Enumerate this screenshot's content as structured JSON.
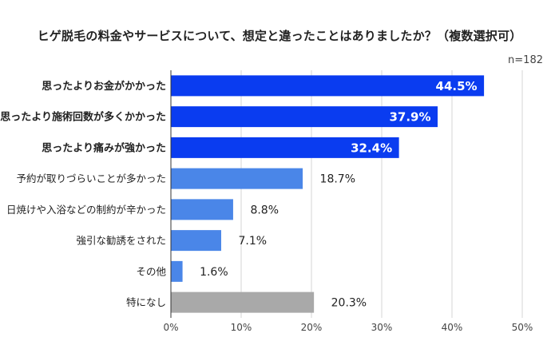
{
  "title": "ヒゲ脱毛の料金やサービスについて、想定と違ったことはありましたか？（複数選択可）",
  "sample_note": "n=182",
  "colors": {
    "highlight": "#0a3cf0",
    "normal": "#4a86e8",
    "none": "#a9a9a9",
    "grid": "#d6d6d6",
    "axis": "#333333"
  },
  "chart_data": {
    "type": "bar",
    "orientation": "horizontal",
    "title": "ヒゲ脱毛の料金やサービスについて、想定と違ったことはありましたか？（複数選択可）",
    "categories": [
      "思ったよりお金がかかった",
      "思ったより施術回数が多くかかった",
      "思ったより痛みが強かった",
      "予約が取りづらいことが多かった",
      "日焼けや入浴などの制約が辛かった",
      "強引な勧誘をされた",
      "その他",
      "特になし"
    ],
    "values": [
      44.5,
      37.9,
      32.4,
      18.7,
      8.8,
      7.1,
      1.6,
      20.3
    ],
    "value_labels": [
      "44.5%",
      "37.9%",
      "32.4%",
      "18.7%",
      "8.8%",
      "7.1%",
      "1.6%",
      "20.3%"
    ],
    "emphasis": [
      "highlight",
      "highlight",
      "highlight",
      "normal",
      "normal",
      "normal",
      "normal",
      "none"
    ],
    "xlim": [
      0,
      50
    ],
    "xticks": [
      0,
      10,
      20,
      30,
      40,
      50
    ],
    "xtick_labels": [
      "0%",
      "10%",
      "20%",
      "30%",
      "40%",
      "50%"
    ],
    "grid": true
  }
}
